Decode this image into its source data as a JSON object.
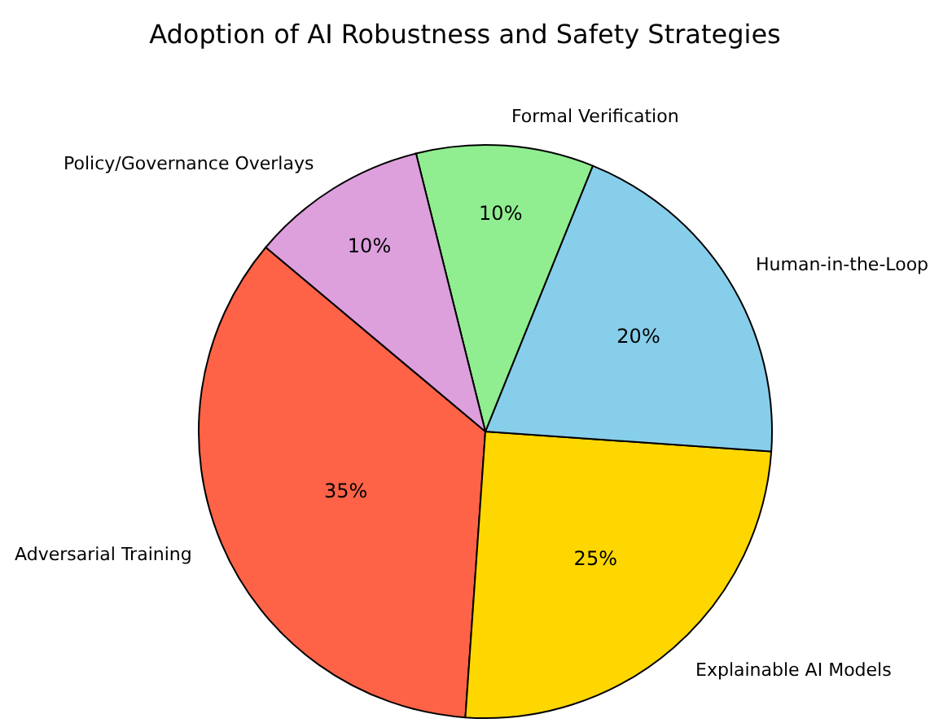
{
  "chart_data": {
    "type": "pie",
    "title": "Adoption of AI Robustness and Safety Strategies",
    "categories": [
      "Adversarial Training",
      "Explainable AI Models",
      "Human-in-the-Loop",
      "Formal Verification",
      "Policy/Governance Overlays"
    ],
    "values": [
      35,
      25,
      20,
      10,
      10
    ],
    "value_labels": [
      "35%",
      "25%",
      "20%",
      "10%",
      "10%"
    ],
    "colors": [
      "#ff6347",
      "#ffd700",
      "#87ceeb",
      "#90ee90",
      "#dda0dd"
    ],
    "legend": false
  }
}
